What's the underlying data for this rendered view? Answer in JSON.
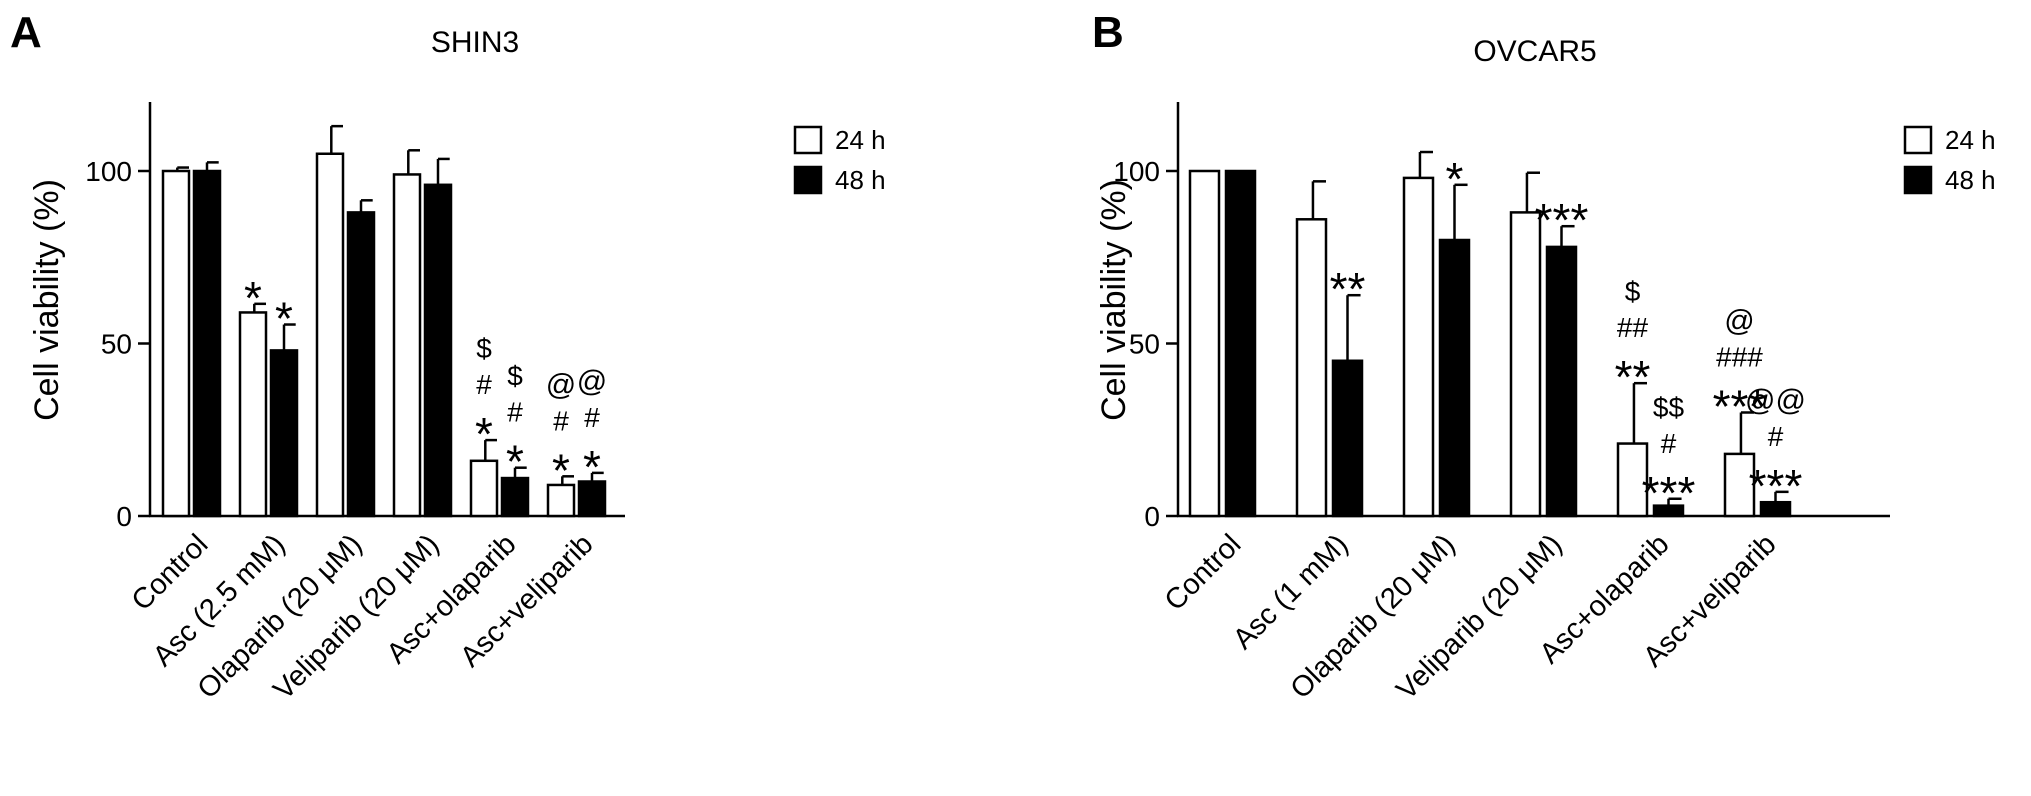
{
  "chart_data": [
    {
      "type": "bar",
      "panel_letter": "A",
      "title": "SHIN3",
      "xlabel": "",
      "ylabel": "Cell viability (%)",
      "ylim": [
        0,
        120
      ],
      "yticks": [
        0,
        50,
        100
      ],
      "grid": false,
      "legend_position": "top-right",
      "categories": [
        "Control",
        "Asc (2.5 mM)",
        "Olaparib (20 μM)",
        "Veliparib (20 μM)",
        "Asc+olaparib",
        "Asc+veliparib"
      ],
      "series": [
        {
          "name": "24 h",
          "fill": "#ffffff",
          "values": [
            100,
            59,
            105,
            99,
            16,
            9
          ],
          "errors": [
            1,
            2.5,
            8,
            7,
            6,
            2.5
          ]
        },
        {
          "name": "48 h",
          "fill": "#000000",
          "values": [
            100,
            48,
            88,
            96,
            11,
            10
          ],
          "errors": [
            2.5,
            7.5,
            3.5,
            7.5,
            3,
            2.5
          ]
        }
      ],
      "annotations": [
        [
          [],
          []
        ],
        [
          [
            "*"
          ],
          [
            "*"
          ]
        ],
        [
          [],
          []
        ],
        [
          [],
          []
        ],
        [
          [
            "*",
            "#",
            "$"
          ],
          [
            "*",
            "#",
            "$"
          ]
        ],
        [
          [
            "*",
            "#",
            "@"
          ],
          [
            "*",
            "#",
            "@"
          ]
        ]
      ]
    },
    {
      "type": "bar",
      "panel_letter": "B",
      "title": "OVCAR5",
      "xlabel": "",
      "ylabel": "Cell viability (%)",
      "ylim": [
        0,
        120
      ],
      "yticks": [
        0,
        50,
        100
      ],
      "grid": false,
      "legend_position": "top-right",
      "categories": [
        "Control",
        "Asc (1 mM)",
        "Olaparib (20 μM)",
        "Veliparib (20 μM)",
        "Asc+olaparib",
        "Asc+veliparib"
      ],
      "series": [
        {
          "name": "24 h",
          "fill": "#ffffff",
          "values": [
            100,
            86,
            98,
            88,
            21,
            18
          ],
          "errors": [
            0,
            11,
            7.5,
            11.5,
            17.5,
            12
          ]
        },
        {
          "name": "48 h",
          "fill": "#000000",
          "values": [
            100,
            45,
            80,
            78,
            3,
            4
          ],
          "errors": [
            0,
            19,
            16,
            6,
            2,
            3
          ]
        }
      ],
      "annotations": [
        [
          [],
          []
        ],
        [
          [],
          [
            "**"
          ]
        ],
        [
          [],
          [
            "*"
          ]
        ],
        [
          [],
          [
            "***"
          ]
        ],
        [
          [
            "**",
            "##",
            "$"
          ],
          [
            "***",
            "#",
            "$$"
          ]
        ],
        [
          [
            "***",
            "###",
            "@"
          ],
          [
            "***",
            "#",
            "@@"
          ]
        ]
      ]
    }
  ]
}
